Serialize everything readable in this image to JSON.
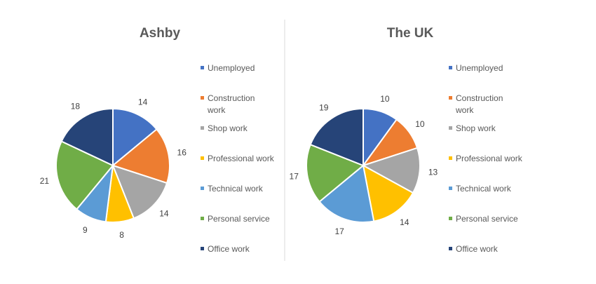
{
  "chart_data": [
    {
      "type": "pie",
      "title": "Ashby",
      "categories": [
        "Unemployed",
        "Construction work",
        "Shop work",
        "Professional work",
        "Technical work",
        "Personal service",
        "Office work"
      ],
      "values": [
        14,
        16,
        14,
        8,
        9,
        21,
        18
      ],
      "colors": [
        "#4472C4",
        "#ED7D31",
        "#A5A5A5",
        "#FFC000",
        "#5B9BD5",
        "#70AD47",
        "#264478"
      ],
      "legend": "right",
      "data_labels": "outside"
    },
    {
      "type": "pie",
      "title": "The UK",
      "categories": [
        "Unemployed",
        "Construction work",
        "Shop work",
        "Professional work",
        "Technical work",
        "Personal service",
        "Office work"
      ],
      "values": [
        10,
        10,
        13,
        14,
        17,
        17,
        19
      ],
      "colors": [
        "#4472C4",
        "#ED7D31",
        "#A5A5A5",
        "#FFC000",
        "#5B9BD5",
        "#70AD47",
        "#264478"
      ],
      "legend": "right",
      "data_labels": "outside"
    }
  ]
}
